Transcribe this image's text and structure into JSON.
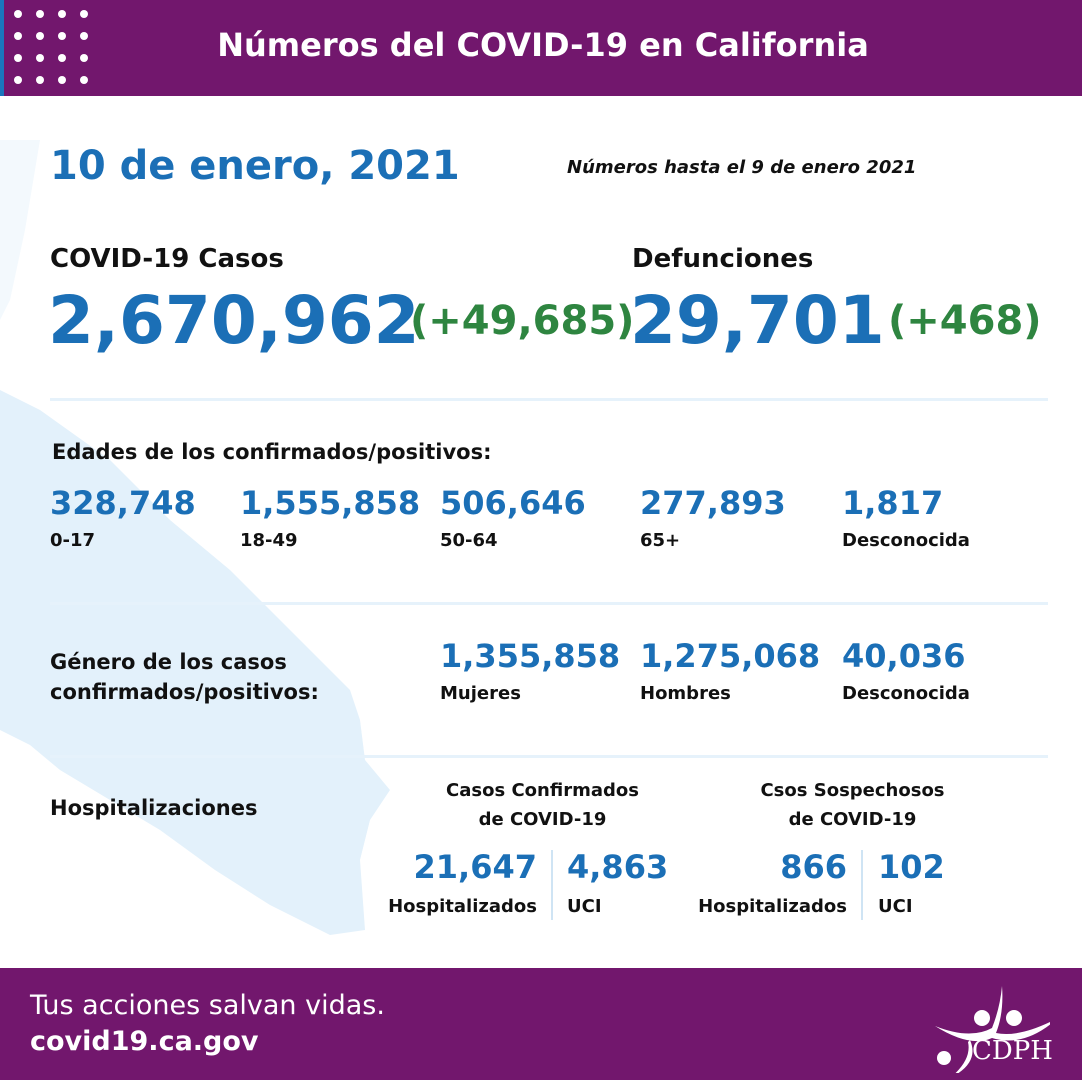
{
  "header": {
    "title": "Números del COVID-19 en California"
  },
  "date": "10 de enero, 2021",
  "as_of": "Números hasta el 9 de enero 2021",
  "cases": {
    "label": "COVID-19 Casos",
    "total": "2,670,962",
    "change": "(+49,685)"
  },
  "deaths": {
    "label": "Defunciones",
    "total": "29,701",
    "change": "(+468)"
  },
  "ages": {
    "title": "Edades de los confirmados/positivos:",
    "items": [
      {
        "value": "328,748",
        "label": "0-17"
      },
      {
        "value": "1,555,858",
        "label": "18-49"
      },
      {
        "value": "506,646",
        "label": "50-64"
      },
      {
        "value": "277,893",
        "label": "65+"
      },
      {
        "value": "1,817",
        "label": "Desconocida"
      }
    ]
  },
  "gender": {
    "title_line1": "Género de los casos",
    "title_line2": "confirmados/positivos:",
    "items": [
      {
        "value": "1,355,858",
        "label": "Mujeres"
      },
      {
        "value": "1,275,068",
        "label": "Hombres"
      },
      {
        "value": "40,036",
        "label": "Desconocida"
      }
    ]
  },
  "hosp": {
    "title": "Hospitalizaciones",
    "confirmed": {
      "title_line1": "Casos Confirmados",
      "title_line2": "de COVID-19",
      "hosp_value": "21,647",
      "hosp_label": "Hospitalizados",
      "icu_value": "4,863",
      "icu_label": "UCI"
    },
    "suspected": {
      "title_line1": "Csos Sospechosos",
      "title_line2": "de COVID-19",
      "hosp_value": "866",
      "hosp_label": "Hospitalizados",
      "icu_value": "102",
      "icu_label": "UCI"
    }
  },
  "footer": {
    "tagline": "Tus acciones salvan vidas.",
    "url": "covid19.ca.gov",
    "logo_text": "CDPH"
  },
  "colors": {
    "purple": "#72176d",
    "blue": "#1b6fb6",
    "green": "#2e8540",
    "map": "#e3f1fb"
  }
}
